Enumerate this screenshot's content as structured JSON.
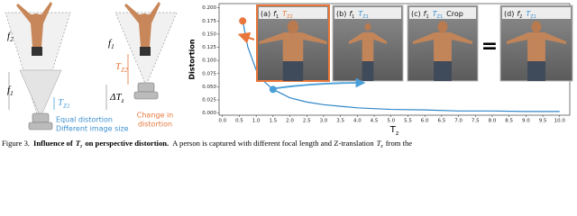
{
  "diagram": {
    "f2": {
      "base": "f",
      "sub": "2"
    },
    "f1_left": {
      "base": "f",
      "sub": "1"
    },
    "f1_right": {
      "base": "f",
      "sub": "1"
    },
    "tz2": {
      "base": "T",
      "sub": "Z2"
    },
    "delta_tz": {
      "base": "ΔT",
      "sub": "z"
    },
    "tz1": {
      "base": "T",
      "sub": "Z1"
    },
    "equal_distortion": "Equal distortion",
    "different_size": "Different image size",
    "change_line1": "Change in",
    "change_line2": "distortion"
  },
  "chart_data": {
    "type": "line",
    "xlabel": {
      "base": "T",
      "sub": "z"
    },
    "ylabel": "Distortion",
    "x": [
      0.6,
      0.75,
      1,
      1.25,
      1.5,
      2,
      2.5,
      3,
      4,
      5,
      6,
      7,
      8,
      9,
      10
    ],
    "series": [
      {
        "color": "#2f86c8",
        "values": [
          0.176,
          0.126,
          0.082,
          0.059,
          0.045,
          0.029,
          0.021,
          0.016,
          0.01,
          0.007,
          0.006,
          0.004,
          0.004,
          0.003,
          0.003
        ]
      }
    ],
    "markers": [
      {
        "x": 0.6,
        "y": 0.175,
        "color": "#e8763a"
      },
      {
        "x": 1.5,
        "y": 0.045,
        "color": "#4a9fd8"
      }
    ],
    "xlim": [
      -0.1,
      10.3
    ],
    "ylim": [
      -0.004,
      0.208
    ],
    "xticks": [
      {
        "value": 0,
        "label": "0.0"
      },
      {
        "value": 0.5,
        "label": "0.5"
      },
      {
        "value": 1,
        "label": "1.0"
      },
      {
        "value": 1.5,
        "label": "1.5"
      },
      {
        "value": 2,
        "label": "2.0"
      },
      {
        "value": 2.5,
        "label": "2.5"
      },
      {
        "value": 3,
        "label": "3.0"
      },
      {
        "value": 3.5,
        "label": "3.5"
      },
      {
        "value": 4,
        "label": "4.0"
      },
      {
        "value": 4.5,
        "label": "4.5"
      },
      {
        "value": 5,
        "label": "5.0"
      },
      {
        "value": 5.5,
        "label": "5.5"
      },
      {
        "value": 6,
        "label": "6.0"
      },
      {
        "value": 6.5,
        "label": "6.5"
      },
      {
        "value": 7,
        "label": "7.0"
      },
      {
        "value": 7.5,
        "label": "7.5"
      },
      {
        "value": 8,
        "label": "8.0"
      },
      {
        "value": 8.5,
        "label": "8.5"
      },
      {
        "value": 9,
        "label": "9.0"
      },
      {
        "value": 9.5,
        "label": "9.5"
      },
      {
        "value": 10,
        "label": "10.0"
      }
    ],
    "yticks": [
      {
        "value": 0,
        "label": "0.000"
      },
      {
        "value": 0.025,
        "label": "0.025"
      },
      {
        "value": 0.05,
        "label": "0.050"
      },
      {
        "value": 0.075,
        "label": "0.075"
      },
      {
        "value": 0.1,
        "label": "0.100"
      },
      {
        "value": 0.125,
        "label": "0.125"
      },
      {
        "value": 0.15,
        "label": "0.150"
      },
      {
        "value": 0.175,
        "label": "0.175"
      },
      {
        "value": 0.2,
        "label": "0.200"
      }
    ],
    "panels": [
      {
        "tag": "(a)",
        "focal": {
          "base": "f",
          "sub": "1"
        },
        "trans": {
          "base": "T",
          "sub": "Z2"
        }
      },
      {
        "tag": "(b)",
        "focal": {
          "base": "f",
          "sub": "1"
        },
        "trans": {
          "base": "T",
          "sub": "Z1"
        }
      },
      {
        "tag": "(c)",
        "focal": {
          "base": "f",
          "sub": "1"
        },
        "trans": {
          "base": "T",
          "sub": "Z1"
        },
        "extra": "Crop"
      },
      {
        "tag": "(d)",
        "focal": {
          "base": "f",
          "sub": "2"
        },
        "trans": {
          "base": "T",
          "sub": "Z1"
        }
      }
    ],
    "equals": "="
  },
  "caption": {
    "figure_label": "Figure 3.",
    "heading_before": "Influence of",
    "heading_var": "T",
    "heading_var_sub": "z",
    "heading_after": "on perspective distortion.",
    "body_before": "A person is captured with different focal length and Z-translation",
    "body_var": "T",
    "body_var_sub": "z",
    "body_after": "from the"
  }
}
